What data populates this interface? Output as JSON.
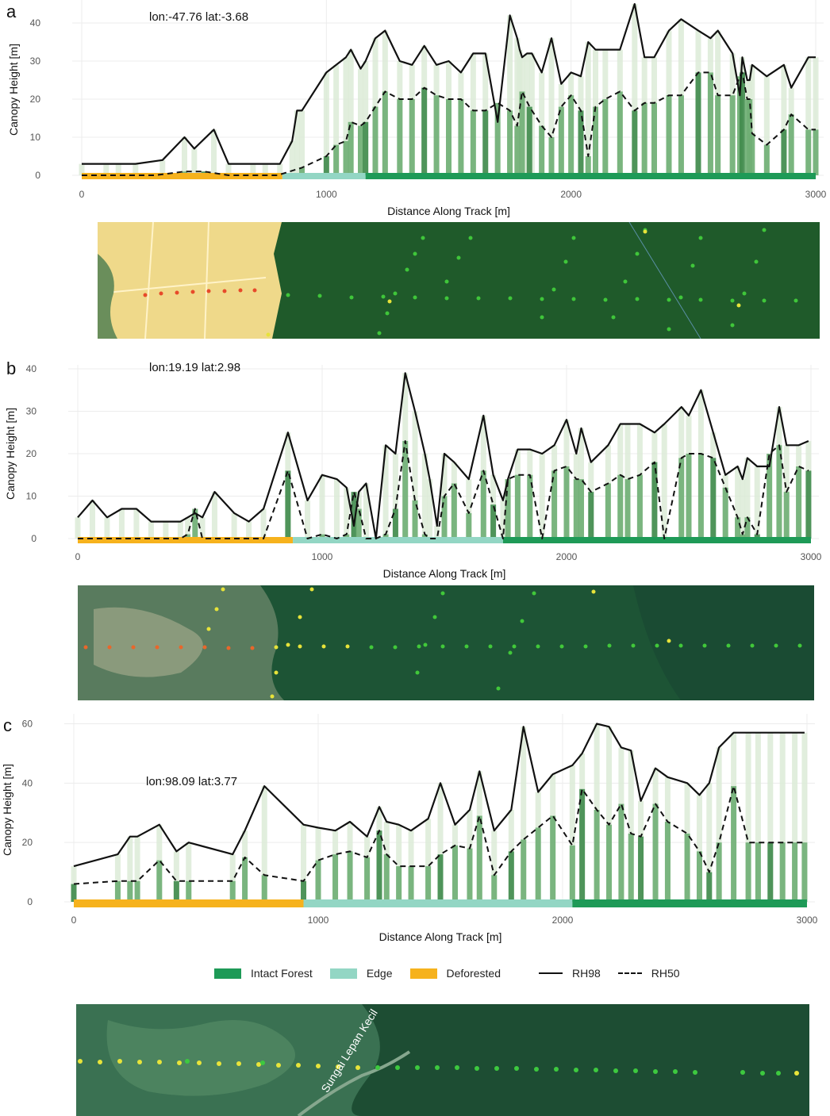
{
  "colors": {
    "intact": "#1e9a57",
    "edge": "#93d6c4",
    "deforested": "#f6b21d",
    "bar_rh98": "#dcebd7",
    "bar_rh50": "#6fae74",
    "bar_rh50_dark": "#3f8a4b",
    "line": "#111111",
    "grid": "#ececec"
  },
  "legend": {
    "intact": "Intact Forest",
    "edge": "Edge",
    "deforested": "Deforested",
    "rh98": "RH98",
    "rh50": "RH50"
  },
  "panels": [
    {
      "letter": "a",
      "coord_label": "lon:-47.76 lat:-3.68"
    },
    {
      "letter": "b",
      "coord_label": "lon:19.19 lat:2.98"
    },
    {
      "letter": "c",
      "coord_label": "lon:98.09 lat:3.77"
    }
  ],
  "map_labels": {
    "river": "Sungai Lepan Kecil"
  },
  "chart_data": [
    {
      "type": "line",
      "ylabel": "Canopy Height [m]",
      "xlabel": "Distance Along Track [m]",
      "xlim": [
        0,
        3000
      ],
      "ylim": [
        0,
        45
      ],
      "xticks": [
        0,
        1000,
        2000,
        3000
      ],
      "yticks": [
        0,
        10,
        20,
        30,
        40
      ],
      "grid": true,
      "segments": [
        {
          "class": "Deforested",
          "from": 0,
          "to": 820
        },
        {
          "class": "Edge",
          "from": 820,
          "to": 1160
        },
        {
          "class": "Intact Forest",
          "from": 1160,
          "to": 3000
        }
      ],
      "series": [
        {
          "name": "RH98",
          "x": [
            0,
            100,
            150,
            220,
            330,
            420,
            460,
            540,
            600,
            700,
            750,
            810,
            860,
            880,
            900,
            1000,
            1040,
            1080,
            1100,
            1140,
            1160,
            1200,
            1240,
            1300,
            1350,
            1400,
            1450,
            1500,
            1550,
            1600,
            1650,
            1700,
            1750,
            1780,
            1790,
            1800,
            1820,
            1840,
            1880,
            1920,
            1960,
            2000,
            2040,
            2070,
            2100,
            2140,
            2200,
            2260,
            2300,
            2340,
            2400,
            2450,
            2520,
            2570,
            2600,
            2660,
            2690,
            2700,
            2720,
            2730,
            2740,
            2800,
            2870,
            2900,
            2970,
            3000
          ],
          "y": [
            3,
            3,
            3,
            3,
            4,
            10,
            7,
            12,
            3,
            3,
            3,
            3,
            9,
            17,
            17,
            27,
            29,
            31,
            33,
            28,
            30,
            36,
            38,
            30,
            29,
            34,
            29,
            30,
            27,
            32,
            32,
            14,
            42,
            36,
            33,
            31,
            32,
            32,
            27,
            36,
            24,
            27,
            26,
            35,
            33,
            33,
            33,
            45,
            31,
            31,
            38,
            41,
            38,
            36,
            38,
            32,
            21,
            31,
            25,
            25,
            29,
            26,
            29,
            23,
            31,
            31
          ]
        },
        {
          "name": "RH50",
          "x": [
            0,
            100,
            200,
            300,
            420,
            500,
            600,
            700,
            800,
            900,
            1000,
            1040,
            1080,
            1100,
            1140,
            1160,
            1200,
            1240,
            1300,
            1350,
            1400,
            1450,
            1500,
            1550,
            1600,
            1650,
            1700,
            1750,
            1780,
            1800,
            1830,
            1880,
            1920,
            1960,
            2000,
            2040,
            2070,
            2100,
            2140,
            2200,
            2260,
            2300,
            2340,
            2400,
            2450,
            2520,
            2570,
            2600,
            2660,
            2690,
            2700,
            2720,
            2730,
            2740,
            2800,
            2870,
            2900,
            2970,
            3000
          ],
          "y": [
            0,
            0,
            0,
            0,
            1,
            1,
            0,
            0,
            0,
            2,
            5,
            8,
            9,
            14,
            13,
            14,
            18,
            22,
            20,
            20,
            23,
            21,
            20,
            20,
            17,
            17,
            19,
            17,
            13,
            22,
            18,
            13,
            10,
            18,
            21,
            17,
            5,
            18,
            20,
            22,
            17,
            19,
            19,
            21,
            21,
            27,
            27,
            21,
            21,
            26,
            27,
            20,
            20,
            11,
            8,
            12,
            16,
            12,
            12
          ]
        }
      ]
    },
    {
      "type": "line",
      "ylabel": "Canopy Height [m]",
      "xlabel": "Distance Along Track [m]",
      "xlim": [
        0,
        3000
      ],
      "ylim": [
        0,
        40
      ],
      "xticks": [
        0,
        1000,
        2000,
        3000
      ],
      "yticks": [
        0,
        10,
        20,
        30,
        40
      ],
      "grid": true,
      "segments": [
        {
          "class": "Deforested",
          "from": 0,
          "to": 880
        },
        {
          "class": "Edge",
          "from": 880,
          "to": 1740
        },
        {
          "class": "Intact Forest",
          "from": 1740,
          "to": 3000
        }
      ],
      "series": [
        {
          "name": "RH98",
          "x": [
            0,
            60,
            120,
            180,
            240,
            300,
            360,
            420,
            450,
            480,
            510,
            560,
            640,
            700,
            760,
            860,
            940,
            1000,
            1060,
            1100,
            1130,
            1150,
            1180,
            1220,
            1260,
            1300,
            1340,
            1380,
            1420,
            1440,
            1470,
            1500,
            1540,
            1600,
            1660,
            1700,
            1740,
            1760,
            1800,
            1850,
            1900,
            1950,
            2000,
            2040,
            2060,
            2100,
            2170,
            2220,
            2250,
            2300,
            2360,
            2400,
            2470,
            2500,
            2550,
            2600,
            2650,
            2700,
            2720,
            2740,
            2780,
            2830,
            2870,
            2900,
            2950,
            2990
          ],
          "y": [
            5,
            9,
            5,
            7,
            7,
            4,
            4,
            4,
            5,
            6,
            5,
            11,
            6,
            4,
            7,
            25,
            9,
            15,
            14,
            12,
            3,
            11,
            13,
            0,
            22,
            20,
            39,
            30,
            20,
            14,
            3,
            20,
            18,
            14,
            29,
            15,
            9,
            14,
            21,
            21,
            20,
            22,
            28,
            20,
            26,
            18,
            22,
            27,
            27,
            27,
            25,
            27,
            31,
            29,
            35,
            25,
            15,
            17,
            14,
            19,
            17,
            17,
            31,
            22,
            22,
            23
          ]
        },
        {
          "name": "RH50",
          "x": [
            0,
            60,
            120,
            180,
            240,
            300,
            360,
            420,
            450,
            480,
            510,
            560,
            640,
            700,
            760,
            860,
            940,
            1000,
            1060,
            1100,
            1130,
            1150,
            1180,
            1220,
            1260,
            1300,
            1340,
            1380,
            1420,
            1440,
            1470,
            1500,
            1540,
            1600,
            1660,
            1700,
            1740,
            1760,
            1800,
            1850,
            1900,
            1950,
            2000,
            2040,
            2060,
            2100,
            2170,
            2220,
            2250,
            2300,
            2360,
            2400,
            2470,
            2500,
            2550,
            2600,
            2650,
            2700,
            2720,
            2740,
            2780,
            2830,
            2870,
            2900,
            2950,
            2990
          ],
          "y": [
            0,
            0,
            0,
            0,
            0,
            0,
            0,
            0,
            1,
            7,
            0,
            0,
            0,
            0,
            0,
            16,
            0,
            1,
            0,
            1,
            11,
            7,
            0,
            0,
            1,
            7,
            23,
            9,
            1,
            0,
            0,
            10,
            13,
            6,
            16,
            8,
            0,
            14,
            15,
            15,
            0,
            16,
            17,
            14,
            14,
            11,
            13,
            15,
            14,
            15,
            18,
            0,
            19,
            20,
            20,
            19,
            12,
            5,
            1,
            5,
            1,
            20,
            22,
            11,
            17,
            16
          ]
        }
      ]
    },
    {
      "type": "line",
      "ylabel": "Canopy Height [m]",
      "xlabel": "Distance Along Track [m]",
      "xlim": [
        0,
        3000
      ],
      "ylim": [
        0,
        62
      ],
      "xticks": [
        0,
        1000,
        2000,
        3000
      ],
      "yticks": [
        0,
        20,
        40,
        60
      ],
      "grid": true,
      "segments": [
        {
          "class": "Deforested",
          "from": 0,
          "to": 940
        },
        {
          "class": "Edge",
          "from": 940,
          "to": 2040
        },
        {
          "class": "Intact Forest",
          "from": 2040,
          "to": 3000
        }
      ],
      "series": [
        {
          "name": "RH98",
          "x": [
            0,
            180,
            230,
            260,
            350,
            420,
            470,
            650,
            700,
            780,
            940,
            1000,
            1070,
            1130,
            1200,
            1250,
            1280,
            1330,
            1380,
            1450,
            1500,
            1560,
            1620,
            1660,
            1720,
            1790,
            1840,
            1900,
            1960,
            2040,
            2080,
            2140,
            2190,
            2240,
            2280,
            2320,
            2380,
            2430,
            2510,
            2560,
            2600,
            2640,
            2700,
            2760,
            2800,
            2850,
            2900,
            2950,
            2990
          ],
          "y": [
            12,
            16,
            22,
            22,
            26,
            17,
            20,
            16,
            24,
            39,
            26,
            25,
            24,
            27,
            22,
            32,
            27,
            26,
            24,
            28,
            40,
            26,
            31,
            44,
            24,
            31,
            59,
            37,
            43,
            46,
            50,
            60,
            59,
            52,
            51,
            34,
            45,
            42,
            40,
            36,
            40,
            52,
            57,
            57,
            57,
            57,
            57,
            57,
            57
          ]
        },
        {
          "name": "RH50",
          "x": [
            0,
            180,
            230,
            260,
            350,
            420,
            470,
            650,
            700,
            780,
            940,
            1000,
            1070,
            1130,
            1200,
            1250,
            1280,
            1330,
            1380,
            1450,
            1500,
            1560,
            1620,
            1660,
            1720,
            1790,
            1840,
            1900,
            1960,
            2040,
            2080,
            2140,
            2190,
            2240,
            2280,
            2320,
            2380,
            2430,
            2510,
            2560,
            2600,
            2640,
            2700,
            2760,
            2800,
            2850,
            2900,
            2950,
            2990
          ],
          "y": [
            6,
            7,
            7,
            7,
            14,
            7,
            7,
            7,
            15,
            9,
            7,
            14,
            16,
            17,
            15,
            24,
            16,
            12,
            12,
            12,
            16,
            19,
            18,
            29,
            9,
            17,
            21,
            25,
            29,
            19,
            38,
            31,
            26,
            33,
            23,
            22,
            33,
            27,
            23,
            17,
            10,
            20,
            39,
            20,
            20,
            20,
            20,
            20,
            20
          ]
        }
      ]
    }
  ]
}
